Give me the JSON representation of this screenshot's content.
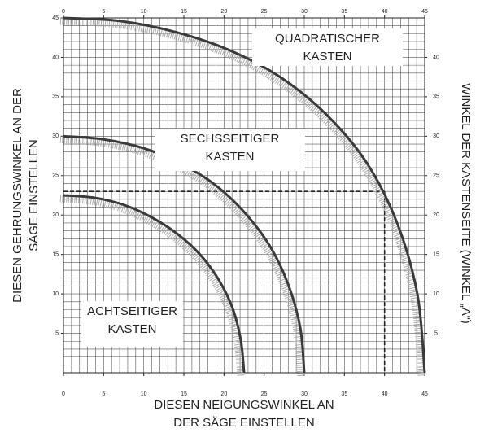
{
  "chart_data": {
    "type": "line",
    "ylabel": [
      "DIESEN GEHRUNGSWINKEL AN DER",
      "SÄGE EINSTELLEN"
    ],
    "xlabel": [
      "DIESEN NEIGUNGSWINKEL AN",
      "DER SÄGE EINSTELLEN"
    ],
    "y2label": "WINKEL DER KASTENSEITE (WINKEL „A“)",
    "xlim": [
      0,
      45
    ],
    "ylim": [
      0,
      45
    ],
    "xticks": [
      0,
      5,
      10,
      15,
      20,
      25,
      30,
      35,
      40,
      45
    ],
    "x2ticks": [
      0,
      5,
      10,
      15,
      20,
      25,
      30,
      35,
      40,
      45
    ],
    "yticks": [
      5,
      10,
      15,
      20,
      25,
      30,
      35,
      40,
      45
    ],
    "y2ticks": [
      5,
      10,
      15,
      20,
      25,
      30,
      35,
      40
    ],
    "grid": true,
    "minor_grid_step": 1,
    "series": [
      {
        "name": [
          "QUADRATISCHER",
          "KASTEN"
        ],
        "color": "#3a3a3a",
        "x": [
          0,
          7.1,
          14.0,
          20.7,
          27.0,
          32.8,
          37.8,
          41.6,
          44.1,
          45
        ],
        "values": [
          45,
          44.6,
          43.2,
          40.9,
          37.5,
          32.7,
          26.6,
          18.9,
          9.9,
          0
        ]
      },
      {
        "name": [
          "SECHSSEITIGER",
          "KASTEN"
        ],
        "color": "#3a3a3a",
        "x": [
          0,
          5.0,
          9.9,
          14.5,
          18.8,
          22.5,
          25.7,
          28.0,
          29.5,
          30
        ],
        "values": [
          30,
          29.6,
          28.5,
          26.6,
          23.9,
          20.4,
          16.1,
          11.2,
          5.7,
          0
        ]
      },
      {
        "name": [
          "ACHTSEITIGER",
          "KASTEN"
        ],
        "color": "#3a3a3a",
        "x": [
          0,
          3.8,
          7.5,
          11.0,
          14.2,
          17.1,
          19.4,
          21.1,
          22.1,
          22.5
        ],
        "values": [
          22.5,
          22.2,
          21.3,
          19.7,
          17.6,
          14.9,
          11.7,
          8.1,
          4.1,
          0
        ]
      }
    ],
    "reference": {
      "x": 40,
      "y": 23
    }
  }
}
